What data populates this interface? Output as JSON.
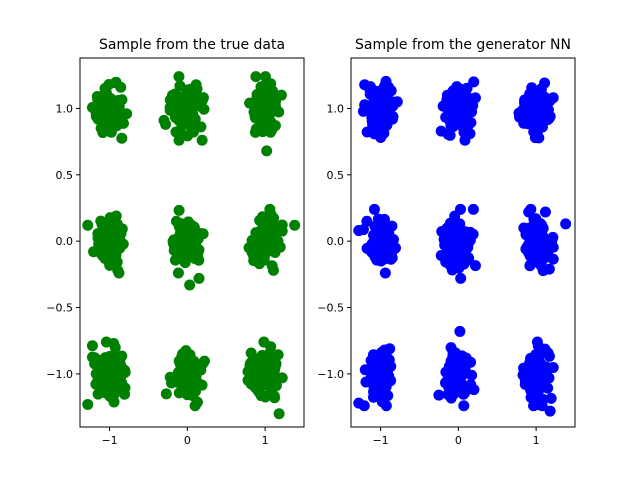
{
  "chart_data": [
    {
      "type": "scatter",
      "title": "Sample from the true data",
      "color": "#008000",
      "xlim": [
        -1.38,
        1.5
      ],
      "ylim": [
        -1.4,
        1.38
      ],
      "xticks": [
        -1,
        0,
        1
      ],
      "xtick_labels": [
        "−1",
        "0",
        "1"
      ],
      "yticks": [
        -1.0,
        -0.5,
        0.0,
        0.5,
        1.0
      ],
      "ytick_labels": [
        "−1.0",
        "−0.5",
        "0.0",
        "0.5",
        "1.0"
      ],
      "grid": false,
      "cluster_centers": [
        [
          -1,
          1
        ],
        [
          0,
          1
        ],
        [
          1,
          1
        ],
        [
          -1,
          0
        ],
        [
          0,
          0
        ],
        [
          1,
          0
        ],
        [
          -1,
          -1
        ],
        [
          0,
          -1
        ],
        [
          1,
          -1
        ]
      ],
      "points_per_cluster": 90,
      "cluster_spread": 0.09,
      "outliers": [
        [
          1.38,
          0.12
        ],
        [
          1.02,
          0.68
        ],
        [
          0.19,
          0.76
        ],
        [
          1.18,
          -1.3
        ],
        [
          -1.28,
          -1.23
        ],
        [
          -0.28,
          0.88
        ],
        [
          0.15,
          -0.28
        ],
        [
          -0.27,
          -1.15
        ],
        [
          0.03,
          -0.33
        ],
        [
          -1.28,
          0.12
        ],
        [
          -0.9,
          -0.04
        ],
        [
          -0.3,
          0.91
        ]
      ]
    },
    {
      "type": "scatter",
      "title": "Sample from the generator NN",
      "color": "#0000ff",
      "xlim": [
        -1.38,
        1.5
      ],
      "ylim": [
        -1.4,
        1.38
      ],
      "xticks": [
        -1,
        0,
        1
      ],
      "xtick_labels": [
        "−1",
        "0",
        "1"
      ],
      "yticks": [
        -1.0,
        -0.5,
        0.0,
        0.5,
        1.0
      ],
      "ytick_labels": [
        "−1.0",
        "−0.5",
        "0.0",
        "0.5",
        "1.0"
      ],
      "grid": false,
      "cluster_centers": [
        [
          -1,
          1
        ],
        [
          0,
          1
        ],
        [
          1,
          1
        ],
        [
          -1,
          0
        ],
        [
          0,
          0
        ],
        [
          1,
          0
        ],
        [
          -1,
          -1
        ],
        [
          0,
          -1
        ],
        [
          1,
          -1
        ]
      ],
      "points_per_cluster": 90,
      "cluster_spread": 0.09,
      "outliers": [
        [
          1.38,
          0.13
        ],
        [
          0.03,
          -0.28
        ],
        [
          1.18,
          -1.28
        ],
        [
          -1.28,
          -1.22
        ],
        [
          0.99,
          0.78
        ],
        [
          0.15,
          0.81
        ],
        [
          -0.25,
          -1.16
        ],
        [
          -1.28,
          0.08
        ],
        [
          0.02,
          -0.68
        ],
        [
          1.12,
          0.22
        ]
      ]
    }
  ]
}
